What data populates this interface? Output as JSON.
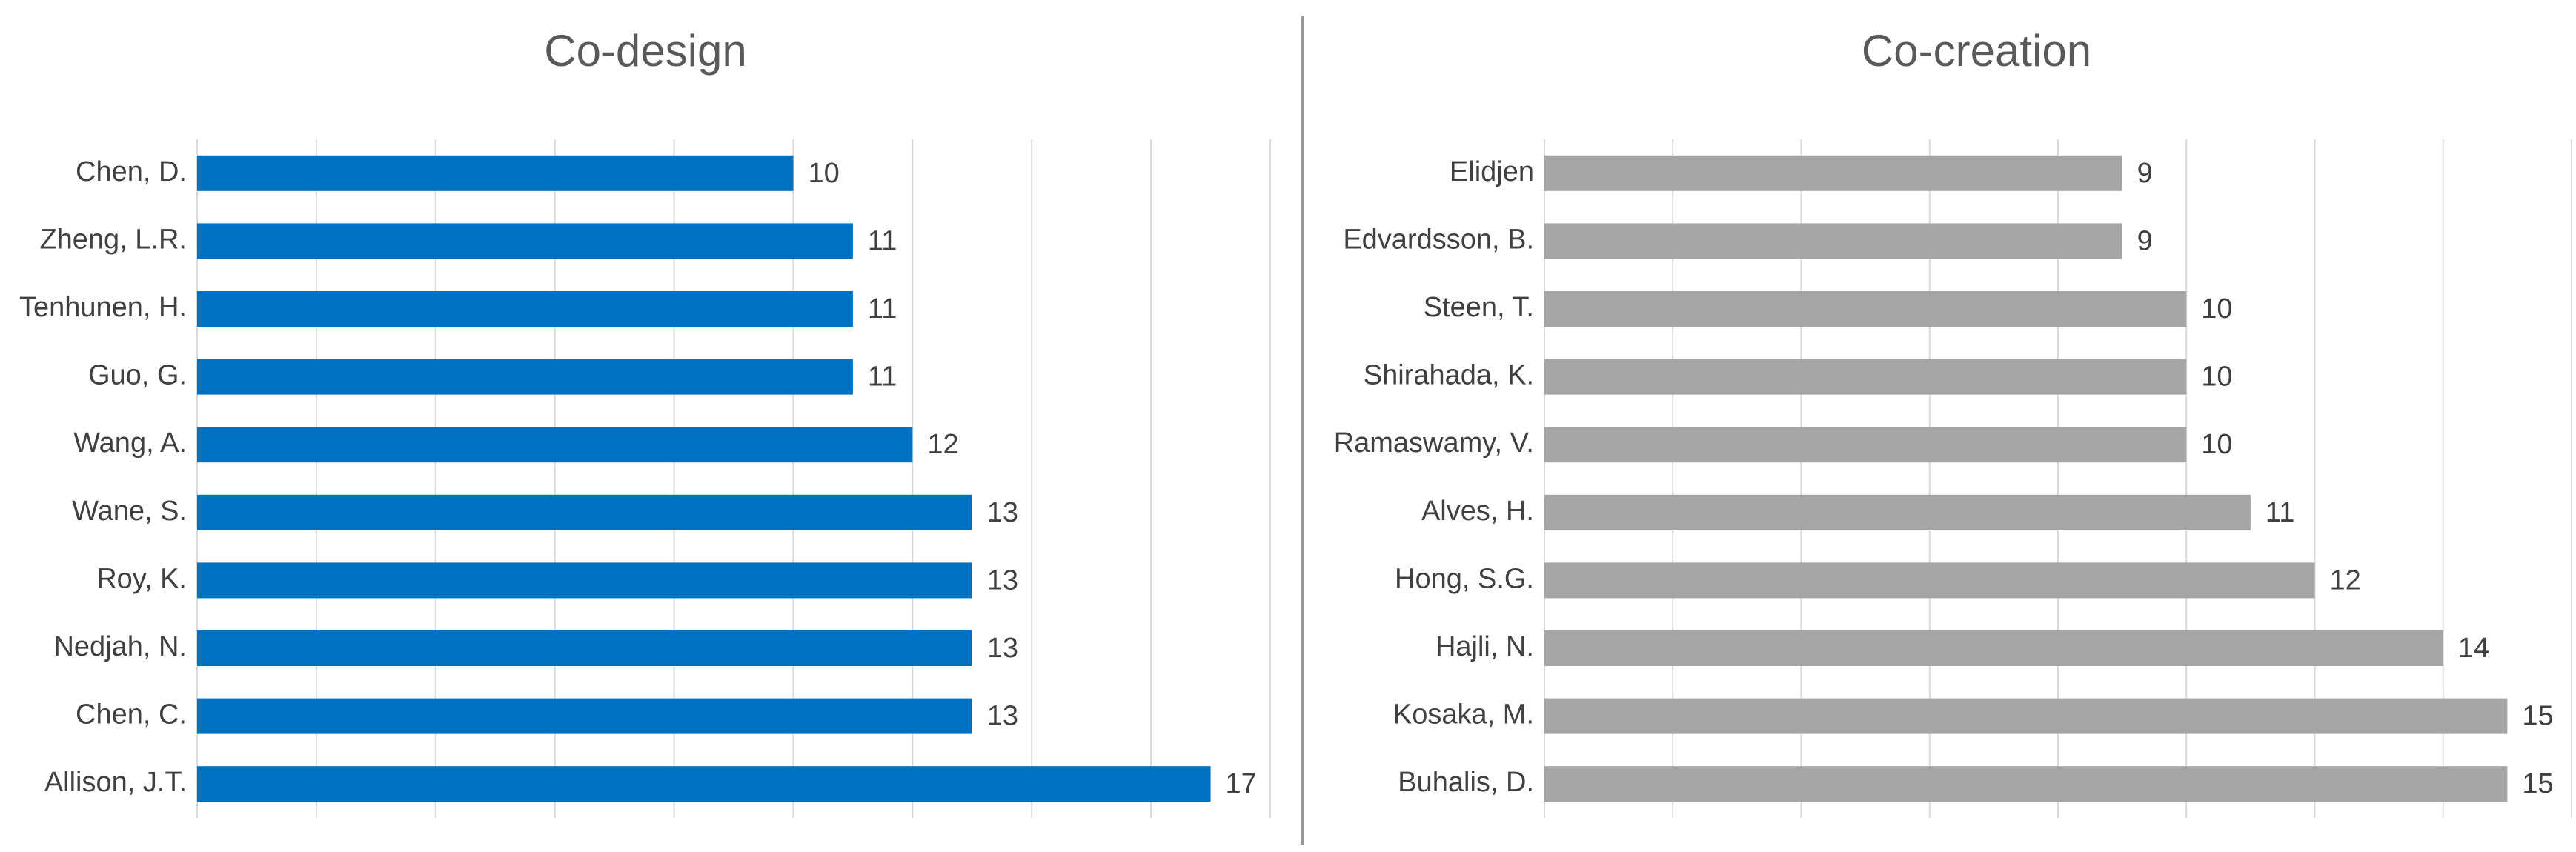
{
  "chart_data": [
    {
      "type": "barh",
      "title": "Co-design",
      "categories": [
        "Chen, D.",
        "Zheng, L.R.",
        "Tenhunen, H.",
        "Guo, G.",
        "Wang, A.",
        "Wane, S.",
        "Roy, K.",
        "Nedjah, N.",
        "Chen, C.",
        "Allison, J.T."
      ],
      "values": [
        10,
        11,
        11,
        11,
        12,
        13,
        13,
        13,
        13,
        17
      ],
      "color": "#0070C0",
      "xlim": [
        0,
        18
      ],
      "xticks": [
        0,
        2,
        4,
        6,
        8,
        10,
        12,
        14,
        16,
        18
      ],
      "grid": true
    },
    {
      "type": "barh",
      "title": "Co-creation",
      "categories": [
        "Elidjen",
        "Edvardsson, B.",
        "Steen, T.",
        "Shirahada, K.",
        "Ramaswamy, V.",
        "Alves, H.",
        "Hong, S.G.",
        "Hajli, N.",
        "Kosaka, M.",
        "Buhalis, D."
      ],
      "values": [
        9,
        9,
        10,
        10,
        10,
        11,
        12,
        14,
        15,
        15
      ],
      "color": "#A5A5A5",
      "xlim": [
        0,
        16
      ],
      "xticks": [
        0,
        2,
        4,
        6,
        8,
        10,
        12,
        14,
        16
      ],
      "grid": true
    }
  ]
}
